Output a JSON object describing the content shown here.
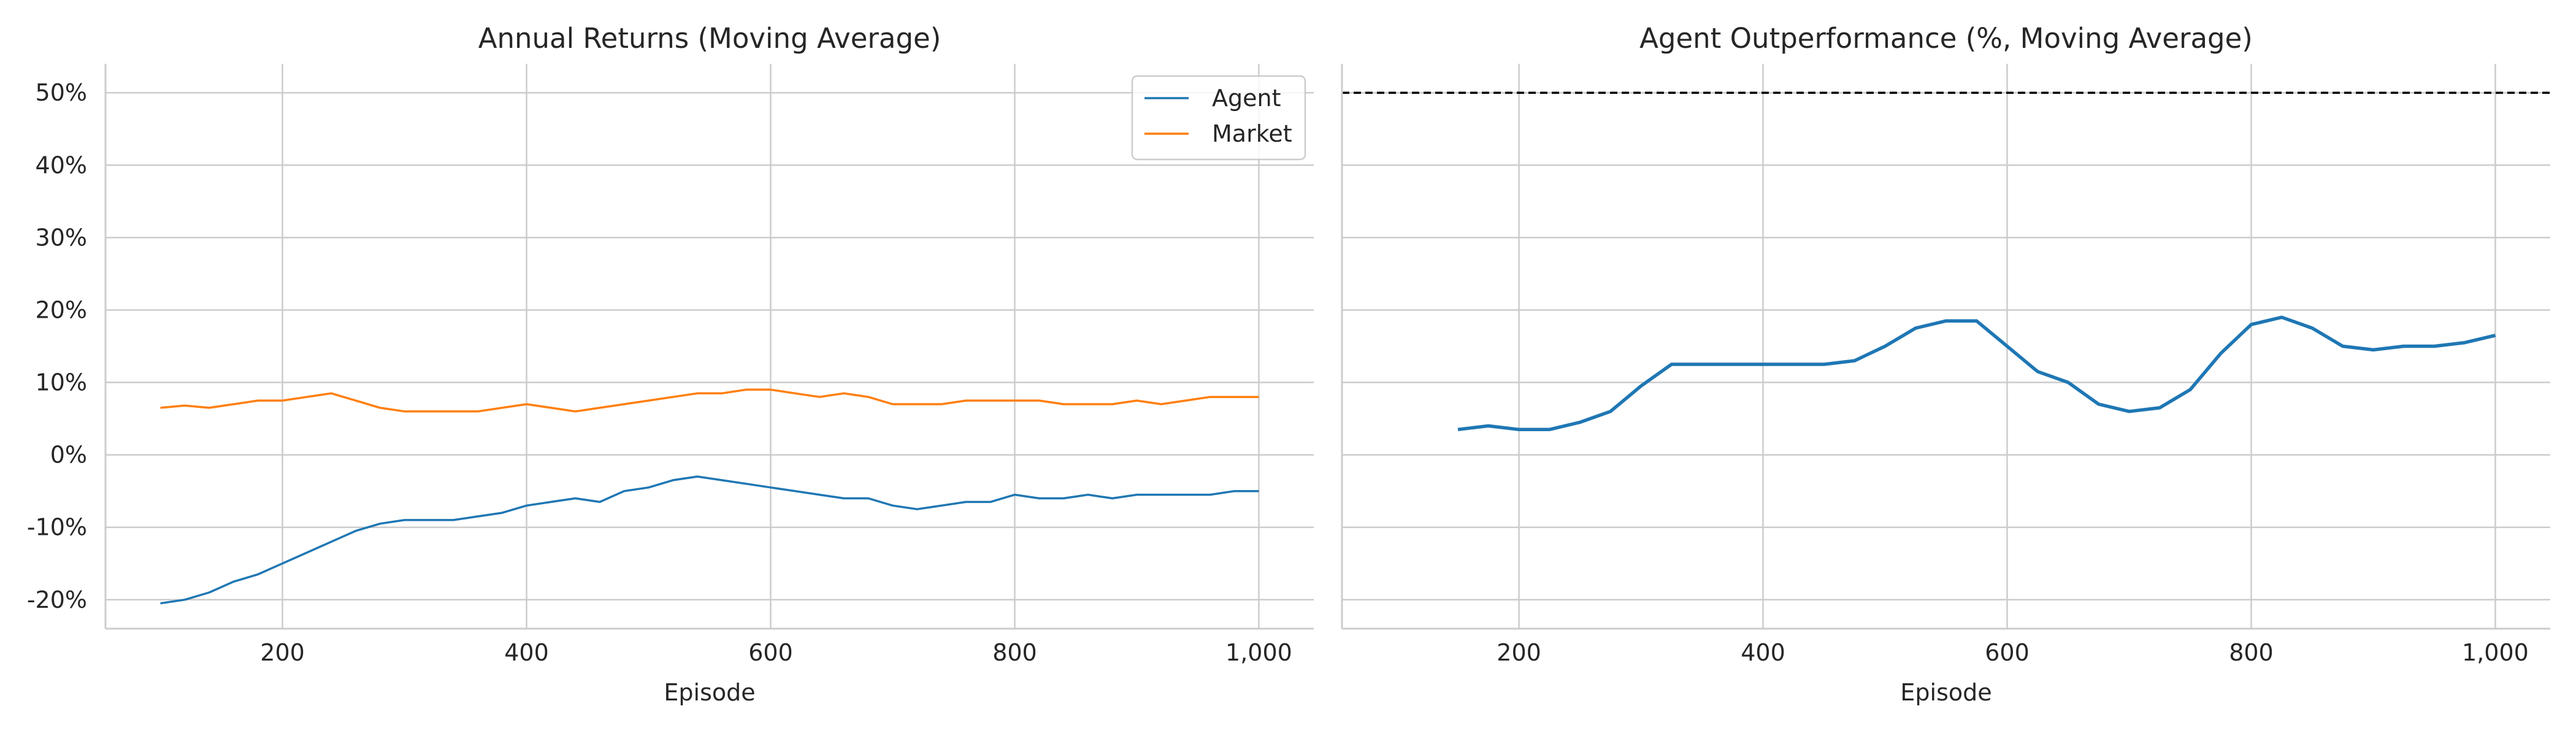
{
  "chart_data": [
    {
      "type": "line",
      "title": "Annual Returns (Moving Average)",
      "xlabel": "Episode",
      "ylabel": "",
      "xlim": [
        55,
        1045
      ],
      "ylim": [
        -24,
        54
      ],
      "xticks": [
        200,
        400,
        600,
        800,
        1000
      ],
      "xtick_labels": [
        "200",
        "400",
        "600",
        "800",
        "1,000"
      ],
      "yticks": [
        -20,
        -10,
        0,
        10,
        20,
        30,
        40,
        50
      ],
      "ytick_labels": [
        "-20%",
        "-10%",
        "0%",
        "10%",
        "20%",
        "30%",
        "40%",
        "50%"
      ],
      "grid": true,
      "legend": "top-right",
      "series": [
        {
          "name": "Agent",
          "color": "#1f77b4",
          "x": [
            100,
            120,
            140,
            160,
            180,
            200,
            220,
            240,
            260,
            280,
            300,
            320,
            340,
            360,
            380,
            400,
            420,
            440,
            460,
            480,
            500,
            520,
            540,
            560,
            580,
            600,
            620,
            640,
            660,
            680,
            700,
            720,
            740,
            760,
            780,
            800,
            820,
            840,
            860,
            880,
            900,
            920,
            940,
            960,
            980,
            1000
          ],
          "y": [
            -20.5,
            -20,
            -19,
            -17.5,
            -16.5,
            -15,
            -13.5,
            -12,
            -10.5,
            -9.5,
            -9,
            -9,
            -9,
            -8.5,
            -8,
            -7,
            -6.5,
            -6,
            -6.5,
            -5,
            -4.5,
            -3.5,
            -3,
            -3.5,
            -4,
            -4.5,
            -5,
            -5.5,
            -6,
            -6,
            -7,
            -7.5,
            -7,
            -6.5,
            -6.5,
            -5.5,
            -6,
            -6,
            -5.5,
            -6,
            -5.5,
            -5.5,
            -5.5,
            -5.5,
            -5,
            -5
          ]
        },
        {
          "name": "Market",
          "color": "#ff7f0e",
          "x": [
            100,
            120,
            140,
            160,
            180,
            200,
            220,
            240,
            260,
            280,
            300,
            320,
            340,
            360,
            380,
            400,
            420,
            440,
            460,
            480,
            500,
            520,
            540,
            560,
            580,
            600,
            620,
            640,
            660,
            680,
            700,
            720,
            740,
            760,
            780,
            800,
            820,
            840,
            860,
            880,
            900,
            920,
            940,
            960,
            980,
            1000
          ],
          "y": [
            6.5,
            6.8,
            6.5,
            7,
            7.5,
            7.5,
            8,
            8.5,
            7.5,
            6.5,
            6,
            6,
            6,
            6,
            6.5,
            7,
            6.5,
            6,
            6.5,
            7,
            7.5,
            8,
            8.5,
            8.5,
            9,
            9,
            8.5,
            8,
            8.5,
            8,
            7,
            7,
            7,
            7.5,
            7.5,
            7.5,
            7.5,
            7,
            7,
            7,
            7.5,
            7,
            7.5,
            8,
            8,
            8
          ]
        }
      ]
    },
    {
      "type": "line",
      "title": "Agent Outperformance (%, Moving Average)",
      "xlabel": "Episode",
      "ylabel": "",
      "xlim": [
        55,
        1045
      ],
      "ylim": [
        -24,
        54
      ],
      "xticks": [
        200,
        400,
        600,
        800,
        1000
      ],
      "xtick_labels": [
        "200",
        "400",
        "600",
        "800",
        "1,000"
      ],
      "yticks": [
        -20,
        -10,
        0,
        10,
        20,
        30,
        40,
        50
      ],
      "grid": true,
      "reference_line": {
        "y": 50,
        "style": "dashed",
        "color": "#000000"
      },
      "series": [
        {
          "color": "#1f77b4",
          "x": [
            150,
            175,
            200,
            225,
            250,
            275,
            300,
            325,
            350,
            375,
            400,
            425,
            450,
            475,
            500,
            525,
            550,
            575,
            600,
            625,
            650,
            675,
            700,
            725,
            750,
            775,
            800,
            825,
            850,
            875,
            900,
            925,
            950,
            975,
            1000
          ],
          "y": [
            3.5,
            4,
            3.5,
            3.5,
            4.5,
            6,
            9.5,
            12.5,
            12.5,
            12.5,
            12.5,
            12.5,
            12.5,
            13,
            15,
            17.5,
            18.5,
            18.5,
            15,
            11.5,
            10,
            7,
            6,
            6.5,
            9,
            14,
            18,
            19,
            17.5,
            15,
            14.5,
            15,
            15,
            15.5,
            16.5
          ]
        }
      ]
    }
  ]
}
